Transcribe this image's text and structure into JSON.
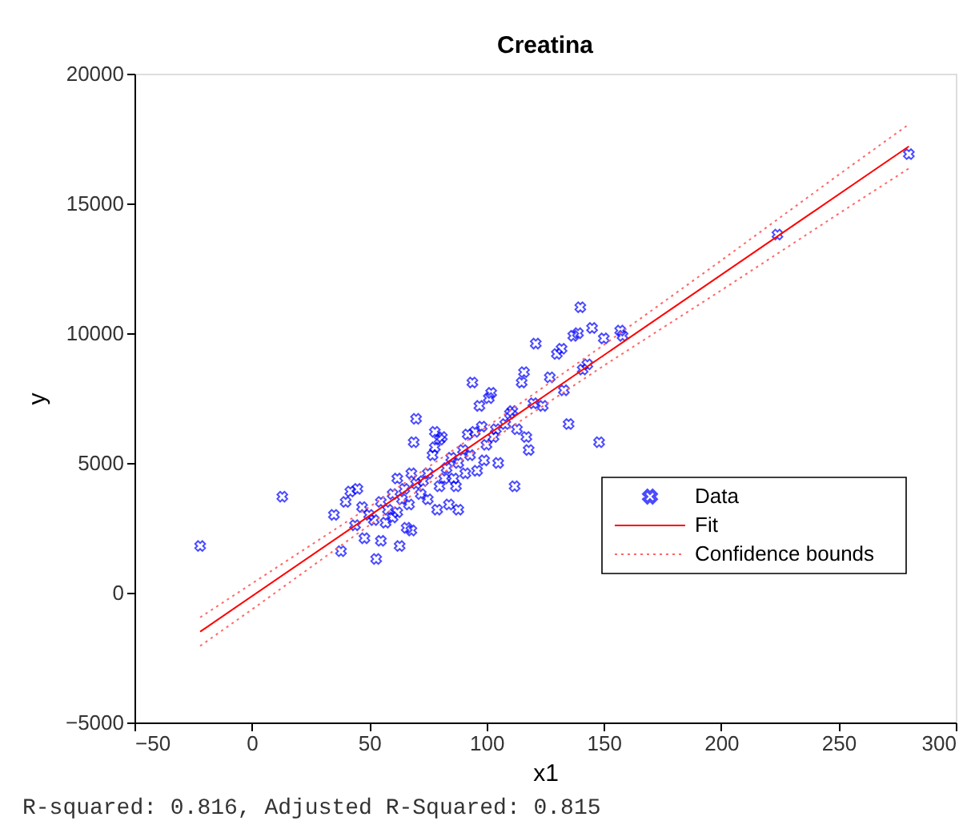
{
  "chart_data": {
    "type": "scatter",
    "title": "Creatina",
    "xlabel": "x1",
    "ylabel": "y",
    "xlim": [
      -50,
      300
    ],
    "xticks": [
      -50,
      0,
      50,
      100,
      150,
      200,
      250,
      300
    ],
    "ylim": [
      -5000,
      20000
    ],
    "yticks": [
      -5000,
      0,
      5000,
      10000,
      15000,
      20000
    ],
    "grid": false,
    "legend": "bottom right",
    "annotations": [
      "R-squared: 0.816,  Adjusted R-Squared: 0.815"
    ],
    "series": [
      {
        "name": "Data",
        "type": "scatter",
        "marker": "cross",
        "color": "#0000ff",
        "x": [
          -22,
          13,
          35,
          38,
          40,
          42,
          44,
          45,
          47,
          48,
          50,
          52,
          53,
          55,
          55,
          57,
          58,
          60,
          60,
          62,
          62,
          63,
          64,
          65,
          66,
          67,
          68,
          68,
          69,
          70,
          70,
          72,
          73,
          75,
          75,
          77,
          78,
          78,
          79,
          80,
          80,
          81,
          82,
          83,
          84,
          85,
          86,
          87,
          88,
          88,
          90,
          91,
          92,
          93,
          94,
          95,
          96,
          97,
          98,
          99,
          100,
          101,
          102,
          103,
          104,
          105,
          108,
          110,
          111,
          112,
          113,
          115,
          116,
          117,
          118,
          120,
          121,
          124,
          127,
          130,
          132,
          133,
          135,
          137,
          139,
          140,
          141,
          143,
          145,
          148,
          150,
          157,
          158,
          224,
          280
        ],
        "values": [
          1800,
          3700,
          3000,
          1600,
          3500,
          3900,
          2600,
          4000,
          3300,
          2100,
          3000,
          2800,
          1300,
          2000,
          3500,
          2700,
          3200,
          2900,
          3800,
          4400,
          3100,
          1800,
          3600,
          4000,
          2500,
          3400,
          4600,
          2400,
          5800,
          4200,
          6700,
          3800,
          4300,
          3600,
          4600,
          5300,
          5600,
          6200,
          3200,
          5900,
          4100,
          6000,
          4400,
          4800,
          3400,
          5200,
          4400,
          4100,
          5000,
          3200,
          5500,
          4600,
          6100,
          5300,
          8100,
          6200,
          4700,
          7200,
          6400,
          5100,
          5700,
          7500,
          7700,
          6000,
          6300,
          5000,
          6500,
          6900,
          7000,
          4100,
          6300,
          8100,
          8500,
          6000,
          5500,
          7300,
          9600,
          7200,
          8300,
          9200,
          9400,
          7800,
          6500,
          9900,
          10000,
          11000,
          8600,
          8800,
          10200,
          5800,
          9800,
          10100,
          9900,
          13800,
          16900
        ]
      },
      {
        "name": "Fit",
        "type": "line",
        "line_style": "solid",
        "color": "#ff0000",
        "x": [
          -22,
          280
        ],
        "values": [
          -1500,
          17200
        ]
      },
      {
        "name": "Confidence bounds",
        "type": "line",
        "line_style": "dotted",
        "color": "#ff6666",
        "x": [
          -22,
          0,
          50,
          90,
          150,
          200,
          250,
          280
        ],
        "values": [
          -950,
          350,
          3300,
          5750,
          9550,
          12800,
          16100,
          18050
        ]
      },
      {
        "type": "line",
        "line_style": "dotted",
        "color": "#ff6666",
        "x": [
          -22,
          0,
          50,
          90,
          150,
          200,
          250,
          280
        ],
        "values": [
          -2050,
          -650,
          2600,
          5150,
          8750,
          11650,
          14600,
          16350
        ]
      }
    ]
  }
}
